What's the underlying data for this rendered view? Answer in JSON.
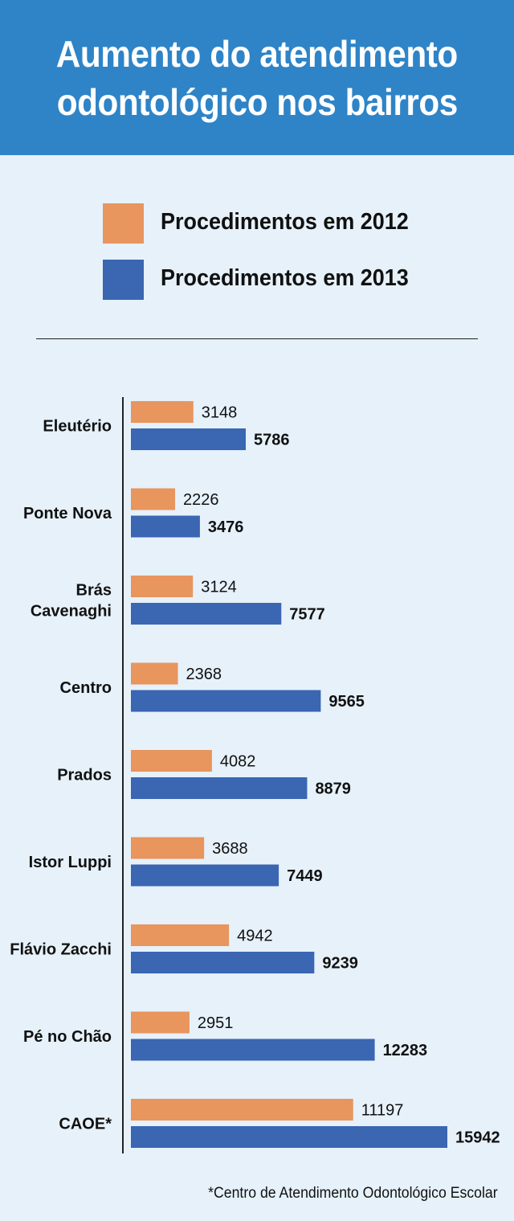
{
  "title": {
    "line1": "Aumento do atendimento",
    "line2": "odontológico nos bairros"
  },
  "legend": [
    {
      "label": "Procedimentos em 2012",
      "color": "#e8955e"
    },
    {
      "label": "Procedimentos em 2013",
      "color": "#3a66b2"
    }
  ],
  "footnote": "*Centro de Atendimento Odontológico Escolar",
  "chart_data": {
    "type": "bar",
    "orientation": "horizontal",
    "categories": [
      [
        "Eleutério"
      ],
      [
        "Ponte Nova"
      ],
      [
        "Brás",
        "Cavenaghi"
      ],
      [
        "Centro"
      ],
      [
        "Prados"
      ],
      [
        "Istor Luppi"
      ],
      [
        "Flávio Zacchi"
      ],
      [
        "Pé no Chão"
      ],
      [
        "CAOE*"
      ]
    ],
    "series": [
      {
        "name": "Procedimentos em 2012",
        "color": "#e8955e",
        "values": [
          3148,
          2226,
          3124,
          2368,
          4082,
          3688,
          4942,
          2951,
          11197
        ]
      },
      {
        "name": "Procedimentos em 2013",
        "color": "#3a66b2",
        "values": [
          5786,
          3476,
          7577,
          9565,
          8879,
          7449,
          9239,
          12283,
          15942
        ]
      }
    ],
    "xlim": [
      0,
      15942
    ],
    "grid": false,
    "data_labels": true
  }
}
